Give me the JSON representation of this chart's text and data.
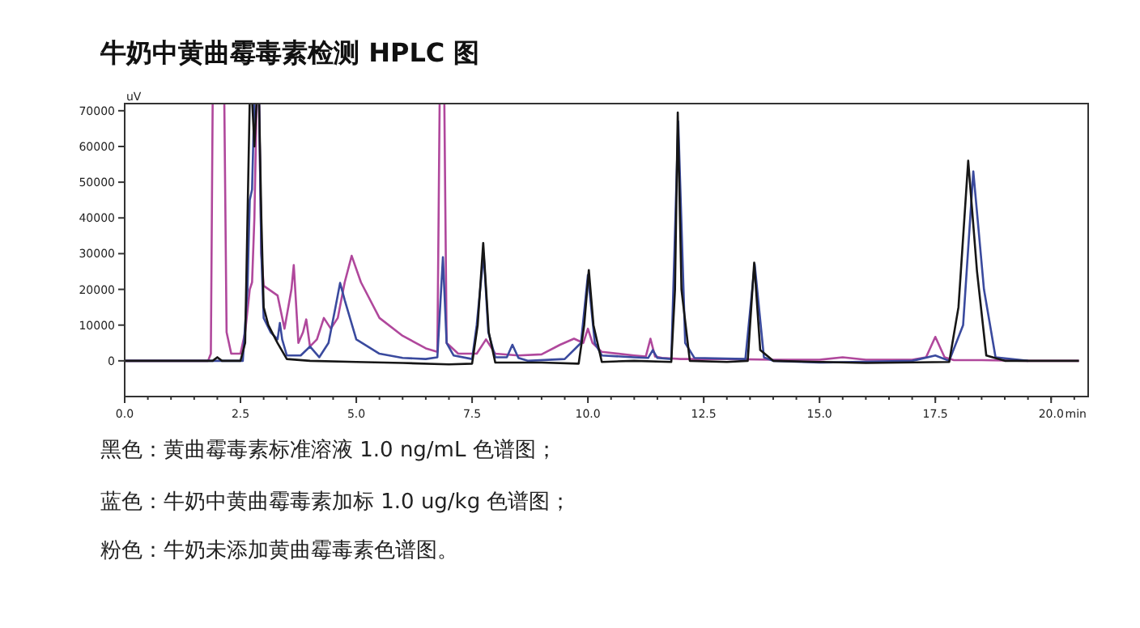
{
  "chart_data": {
    "type": "line",
    "title": "牛奶中黄曲霉毒素检测 HPLC 图",
    "xlabel": "min",
    "ylabel": "uV",
    "xlim": [
      0,
      20.8
    ],
    "ylim": [
      -10000,
      72000
    ],
    "xticks": [
      {
        "value": 0,
        "label": "0.0"
      },
      {
        "value": 2.5,
        "label": "2.5"
      },
      {
        "value": 5,
        "label": "5.0"
      },
      {
        "value": 7.5,
        "label": "7.5"
      },
      {
        "value": 10,
        "label": "10.0"
      },
      {
        "value": 12.5,
        "label": "12.5"
      },
      {
        "value": 15,
        "label": "15.0"
      },
      {
        "value": 17.5,
        "label": "17.5"
      },
      {
        "value": 20,
        "label": "20.0"
      }
    ],
    "yticks": [
      0,
      10000,
      20000,
      30000,
      40000,
      50000,
      60000,
      70000
    ],
    "grid": false,
    "line_style": "solid",
    "series": [
      {
        "color": "#b0489c",
        "x": [
          0,
          1.8,
          1.86,
          1.9,
          2.15,
          2.2,
          2.3,
          2.5,
          2.6,
          2.7,
          2.75,
          2.8,
          2.85,
          2.9,
          2.95,
          3.0,
          3.3,
          3.45,
          3.6,
          3.65,
          3.75,
          3.85,
          3.92,
          4.0,
          4.15,
          4.3,
          4.45,
          4.6,
          4.75,
          4.9,
          5.1,
          5.5,
          6.0,
          6.5,
          6.75,
          6.8,
          6.85,
          6.9,
          6.95,
          7.2,
          7.6,
          7.8,
          8.0,
          8.5,
          9.0,
          9.4,
          9.7,
          9.9,
          10.0,
          10.1,
          10.3,
          11.0,
          11.25,
          11.35,
          11.45,
          11.6,
          12.0,
          13.0,
          14.0,
          15.0,
          15.5,
          16.0,
          17.0,
          17.3,
          17.5,
          17.7,
          17.9,
          18.5,
          19.5,
          20.6
        ],
        "values": [
          0,
          0,
          2000,
          null,
          null,
          8000,
          2000,
          2000,
          8000,
          20000,
          22000,
          40000,
          null,
          null,
          30000,
          21000,
          18300,
          9000,
          20000,
          26800,
          5000,
          8000,
          11600,
          4000,
          6000,
          12000,
          9000,
          12000,
          22000,
          29400,
          22000,
          12000,
          7000,
          3500,
          2500,
          null,
          null,
          null,
          5000,
          2000,
          2000,
          6000,
          2000,
          1500,
          1800,
          4500,
          6200,
          5000,
          9000,
          5000,
          2500,
          1500,
          1200,
          6200,
          1200,
          800,
          500,
          500,
          300,
          300,
          1000,
          300,
          300,
          1000,
          6700,
          1000,
          200,
          200,
          0,
          0
        ]
      },
      {
        "color": "#3a4a9e",
        "x": [
          0,
          2.55,
          2.65,
          2.7,
          2.75,
          2.8,
          2.85,
          2.9,
          2.95,
          3.0,
          3.15,
          3.3,
          3.35,
          3.4,
          3.5,
          3.8,
          4.0,
          4.2,
          4.4,
          4.55,
          4.65,
          4.75,
          5.0,
          5.5,
          6.0,
          6.5,
          6.75,
          6.87,
          6.95,
          7.1,
          7.5,
          7.6,
          7.75,
          7.85,
          8.0,
          8.25,
          8.37,
          8.5,
          8.7,
          9.5,
          9.85,
          10.0,
          10.15,
          10.3,
          11.0,
          11.3,
          11.4,
          11.5,
          11.8,
          11.95,
          12.1,
          12.3,
          13.4,
          13.6,
          13.8,
          14.0,
          15.0,
          17.0,
          17.5,
          17.8,
          18.1,
          18.32,
          18.55,
          18.8,
          19.5
        ],
        "values": [
          0,
          0,
          20000,
          45000,
          48000,
          null,
          null,
          null,
          30000,
          12000,
          8000,
          6000,
          10600,
          6000,
          1500,
          1500,
          4000,
          1000,
          5000,
          15000,
          21800,
          17000,
          6000,
          2000,
          800,
          500,
          1000,
          29000,
          5000,
          1500,
          500,
          10000,
          30000,
          8000,
          1000,
          1000,
          4500,
          800,
          0,
          500,
          5000,
          24000,
          5000,
          1500,
          1000,
          800,
          3000,
          800,
          500,
          67000,
          5000,
          800,
          500,
          27000,
          1000,
          0,
          -500,
          0,
          1500,
          0,
          10000,
          53000,
          20000,
          1000,
          0
        ]
      },
      {
        "color": "#161616",
        "x": [
          0,
          1.9,
          2.0,
          2.1,
          2.5,
          2.6,
          2.7,
          2.75,
          2.8,
          2.85,
          2.9,
          2.95,
          3.0,
          3.1,
          3.3,
          3.5,
          4.0,
          5.0,
          6.0,
          7.0,
          7.5,
          7.62,
          7.74,
          7.86,
          8.0,
          9.0,
          9.8,
          9.92,
          10.02,
          10.12,
          10.3,
          11.0,
          11.8,
          11.88,
          11.94,
          12.02,
          12.2,
          13.0,
          13.45,
          13.59,
          13.72,
          14.0,
          15.0,
          16.0,
          17.8,
          18.0,
          18.21,
          18.4,
          18.6,
          19.0,
          20.6
        ],
        "values": [
          0,
          0,
          1000,
          0,
          0,
          5000,
          null,
          null,
          60000,
          null,
          null,
          40000,
          15000,
          10000,
          5000,
          500,
          0,
          -300,
          -600,
          -1000,
          -800,
          10000,
          33000,
          8000,
          -500,
          -500,
          -800,
          10000,
          25400,
          10000,
          -300,
          0,
          -300,
          20000,
          69500,
          20000,
          0,
          -300,
          0,
          27500,
          3000,
          0,
          -300,
          -600,
          -300,
          15000,
          56000,
          25000,
          1500,
          0,
          0
        ]
      }
    ],
    "annotations": [
      "黑色：黄曲霉毒素标准溶液 1.0 ng/mL 色谱图；",
      "蓝色：牛奶中黄曲霉毒素加标 1.0 ug/kg 色谱图；",
      "粉色：牛奶未添加黄曲霉毒素色谱图。"
    ]
  }
}
